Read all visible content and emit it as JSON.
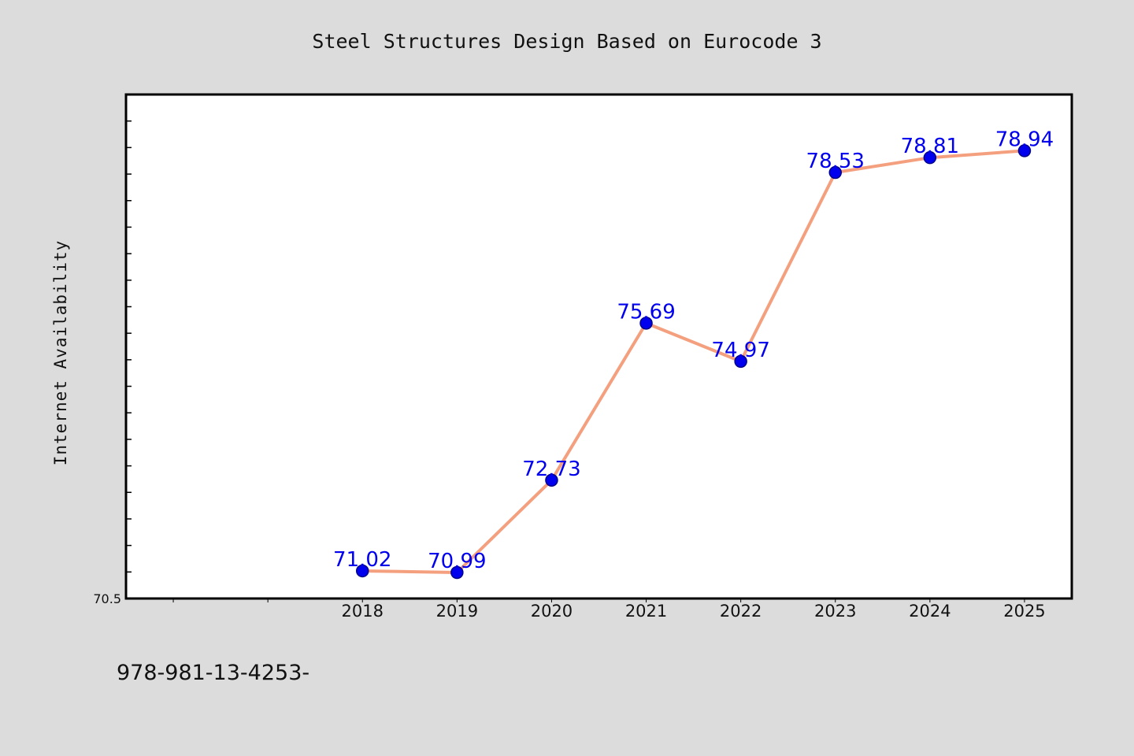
{
  "page": {
    "footer_text": "978-981-13-4253-"
  },
  "colors": {
    "background": "#dcdcdc",
    "plot_background": "#ffffff",
    "line": "#f4a07f",
    "marker": "#0000ee",
    "marker_edge": "#00008b",
    "data_label": "#0000ee",
    "frame": "#000000"
  },
  "chart_data": {
    "type": "line",
    "title": "Steel Structures Design Based on Eurocode 3",
    "xlabel": "",
    "ylabel": "Internet Availability",
    "x": [
      "2018",
      "2019",
      "2020",
      "2021",
      "2022",
      "2023",
      "2024",
      "2025"
    ],
    "x_axis_slots": 10,
    "x_first_category_slot": 2,
    "series": [
      {
        "name": "",
        "values": [
          71.02,
          70.99,
          72.73,
          75.69,
          74.97,
          78.53,
          78.81,
          78.94
        ]
      }
    ],
    "data_labels": [
      "71.02",
      "70.99",
      "72.73",
      "75.69",
      "74.97",
      "78.53",
      "78.81",
      "78.94"
    ],
    "ylim": [
      70.5,
      80.0
    ],
    "ytick_labels": [
      "70.5"
    ],
    "y_minor_tick_step": 0.5,
    "grid": false,
    "legend": "none"
  }
}
